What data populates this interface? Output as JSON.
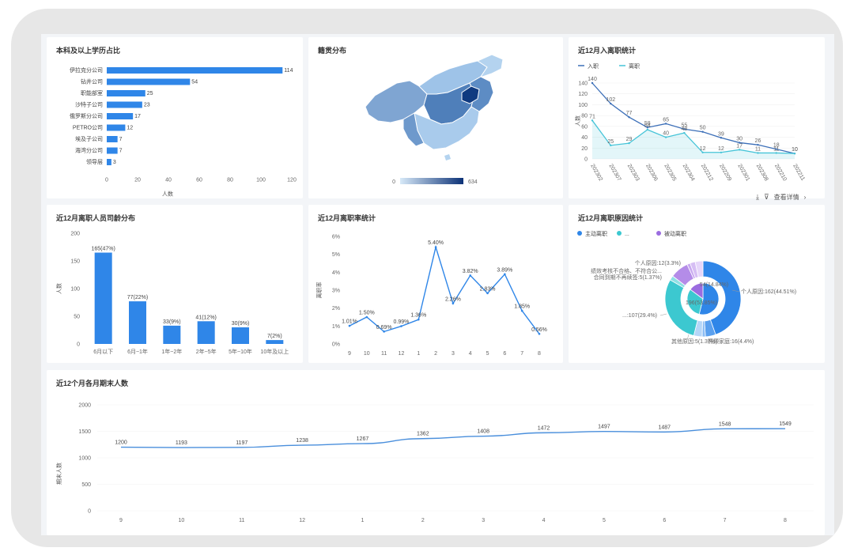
{
  "panels": {
    "education": {
      "title": "本科及以上学历占比",
      "chart_data": {
        "type": "bar",
        "orientation": "horizontal",
        "categories": [
          "伊拉克分公司",
          "钻井公司",
          "职能部室",
          "沙特子公司",
          "俄罗斯分公司",
          "PETRO公司",
          "埃及子公司",
          "海湾分公司",
          "领导层"
        ],
        "values": [
          114,
          54,
          25,
          23,
          17,
          12,
          7,
          7,
          3
        ],
        "xlabel": "人数",
        "xlim": [
          0,
          120
        ],
        "xticks": [
          0,
          20,
          40,
          60,
          80,
          100,
          120
        ],
        "color": "#2f86e8"
      }
    },
    "origin": {
      "title": "籍贯分布",
      "chart_data": {
        "type": "map",
        "region": "China",
        "visual_min": 0,
        "visual_max": 634,
        "min_label": "0",
        "max_label": "634",
        "color_low": "#d7e9f8",
        "color_high": "#0c3277"
      }
    },
    "hires": {
      "title": "近12月入离职统计",
      "chart_data": {
        "type": "line",
        "categories": [
          "202302",
          "202307",
          "202303",
          "202306",
          "202305",
          "202304",
          "202212",
          "202209",
          "202301",
          "202308",
          "202210",
          "202211"
        ],
        "series": [
          {
            "name": "入职",
            "values": [
              140,
              102,
              77,
              58,
              65,
              55,
              50,
              39,
              30,
              26,
              18,
              10
            ],
            "color": "#3c6fb8"
          },
          {
            "name": "离职",
            "values": [
              71,
              25,
              29,
              54,
              40,
              48,
              12,
              12,
              17,
              11,
              11,
              10
            ],
            "color": "#46c4d8"
          }
        ],
        "ylabel": "人数",
        "ylim": [
          0,
          140
        ],
        "yticks": [
          0,
          20,
          40,
          60,
          80,
          100,
          120,
          140
        ],
        "legend": "top-left"
      },
      "footer": {
        "detail_label": "查看详情"
      }
    },
    "tenure": {
      "title": "近12月离职人员司龄分布",
      "chart_data": {
        "type": "bar",
        "categories": [
          "6月以下",
          "6月~1年",
          "1年~2年",
          "2年~5年",
          "5年~10年",
          "10年及以上"
        ],
        "values": [
          165,
          77,
          33,
          41,
          30,
          7
        ],
        "data_labels": [
          "165(47%)",
          "77(22%)",
          "33(9%)",
          "41(12%)",
          "30(9%)",
          "7(2%)"
        ],
        "ylabel": "人数",
        "ylim": [
          0,
          200
        ],
        "yticks": [
          0,
          50,
          100,
          150,
          200
        ],
        "color": "#2f86e8"
      }
    },
    "turnover": {
      "title": "近12月离职率统计",
      "chart_data": {
        "type": "line",
        "categories": [
          "9",
          "10",
          "11",
          "12",
          "1",
          "2",
          "3",
          "4",
          "5",
          "6",
          "7",
          "8"
        ],
        "values": [
          1.01,
          1.5,
          0.69,
          0.99,
          1.36,
          5.4,
          2.26,
          3.82,
          2.83,
          3.89,
          1.85,
          0.56
        ],
        "data_labels": [
          "1.01%",
          "1.50%",
          "0.69%",
          "0.99%",
          "1.36%",
          "5.40%",
          "2.26%",
          "3.82%",
          "2.83%",
          "3.89%",
          "1.85%",
          "0.56%"
        ],
        "ylabel": "离职率",
        "ylim": [
          0,
          6
        ],
        "yticks": [
          "0%",
          "1%",
          "2%",
          "3%",
          "4%",
          "5%",
          "6%"
        ],
        "color": "#2f86e8"
      }
    },
    "reasons": {
      "title": "近12月离职原因统计",
      "legend": [
        {
          "name": "主动离职",
          "color": "#2f86e8"
        },
        {
          "name": "...",
          "color": "#3cc8d0"
        },
        {
          "name": "被动离职",
          "color": "#9b6ce0"
        }
      ],
      "chart_data": {
        "type": "pie",
        "style": "nested-donut",
        "inner": [
          {
            "label": "196(53.85%)",
            "value": 53.85,
            "color": "#2f86e8"
          },
          {
            "label": "...",
            "value": 31.31,
            "color": "#3cc8d0"
          },
          {
            "label": "54(14.84%)",
            "value": 14.84,
            "color": "#9b6ce0"
          }
        ],
        "outer": [
          {
            "label": "个人原因:162(44.51%)",
            "value": 44.51,
            "color": "#2f86e8"
          },
          {
            "label": "照顾家庭:16(4.4%)",
            "value": 4.4,
            "color": "#5aa0ee"
          },
          {
            "label": "其他原因:5(1.37%)",
            "value": 1.37,
            "color": "#8bbdf4"
          },
          {
            "label": "...",
            "value": 3.57,
            "color": "#b5d6f8"
          },
          {
            "label": "...:107(29.4%)",
            "value": 29.4,
            "color": "#3cc8d0"
          },
          {
            "label": "...",
            "value": 1.91,
            "color": "#8fe0e4"
          },
          {
            "label": "...",
            "value": 7.84,
            "color": "#b48ce8"
          },
          {
            "label": "合同到期不再续签:5(1.37%)",
            "value": 1.37,
            "color": "#c8a8f0"
          },
          {
            "label": "绩效考核不合格、不符合公...",
            "value": 2.2,
            "color": "#d6bef4"
          },
          {
            "label": "个人原因:12(3.3%)",
            "value": 3.3,
            "color": "#e6d6fa"
          }
        ]
      }
    },
    "headcount": {
      "title": "近12个月各月期末人数",
      "chart_data": {
        "type": "line",
        "categories": [
          "9",
          "10",
          "11",
          "12",
          "1",
          "2",
          "3",
          "4",
          "5",
          "6",
          "7",
          "8"
        ],
        "values": [
          1200,
          1193,
          1197,
          1238,
          1267,
          1362,
          1408,
          1472,
          1497,
          1487,
          1548,
          1549
        ],
        "ylabel": "期末人数",
        "ylim": [
          0,
          2000
        ],
        "yticks": [
          0,
          500,
          1000,
          1500,
          2000
        ],
        "color": "#4a8fdc"
      }
    }
  }
}
